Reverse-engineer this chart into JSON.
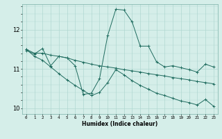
{
  "title": "",
  "xlabel": "Humidex (Indice chaleur)",
  "bg_color": "#d5eee9",
  "grid_color": "#b0d8d2",
  "line_color": "#1e6b5e",
  "xlim": [
    -0.5,
    23.5
  ],
  "ylim": [
    9.85,
    12.65
  ],
  "ytick_values": [
    10,
    11,
    12
  ],
  "line1_x": [
    0,
    1,
    2,
    3,
    4,
    5,
    6,
    7,
    8,
    9,
    10,
    11,
    12,
    13,
    14,
    15,
    16,
    17,
    18,
    19,
    20,
    21,
    22,
    23
  ],
  "line1_y": [
    11.47,
    11.38,
    11.52,
    11.08,
    11.32,
    11.28,
    11.08,
    10.35,
    10.38,
    10.75,
    11.85,
    12.52,
    12.5,
    12.2,
    11.58,
    11.58,
    11.18,
    11.05,
    11.08,
    11.03,
    10.98,
    10.92,
    11.12,
    11.05
  ],
  "line2_x": [
    0,
    1,
    2,
    3,
    4,
    5,
    6,
    7,
    8,
    9,
    10,
    11,
    12,
    13,
    14,
    15,
    16,
    17,
    18,
    19,
    20,
    21,
    22,
    23
  ],
  "line2_y": [
    11.5,
    11.4,
    11.4,
    11.35,
    11.32,
    11.28,
    11.22,
    11.17,
    11.12,
    11.08,
    11.05,
    11.02,
    10.98,
    10.95,
    10.92,
    10.88,
    10.85,
    10.82,
    10.78,
    10.75,
    10.72,
    10.68,
    10.65,
    10.62
  ],
  "line3_x": [
    0,
    1,
    2,
    3,
    4,
    5,
    6,
    7,
    8,
    9,
    10,
    11,
    12,
    13,
    14,
    15,
    16,
    17,
    18,
    19,
    20,
    21,
    22,
    23
  ],
  "line3_y": [
    11.5,
    11.32,
    11.22,
    11.05,
    10.88,
    10.72,
    10.58,
    10.45,
    10.32,
    10.4,
    10.65,
    10.98,
    10.85,
    10.7,
    10.58,
    10.48,
    10.38,
    10.32,
    10.25,
    10.18,
    10.14,
    10.08,
    10.22,
    10.05
  ]
}
